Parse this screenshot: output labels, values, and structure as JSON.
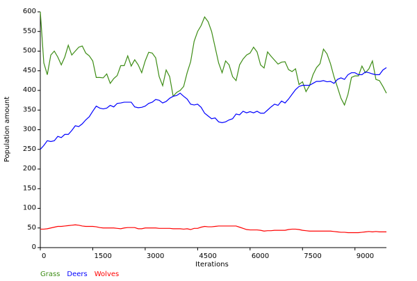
{
  "chart_data": {
    "type": "line",
    "x_label": "Iterations",
    "y_label": "Population amount",
    "x": [
      0,
      100,
      200,
      300,
      400,
      500,
      600,
      700,
      800,
      900,
      1000,
      1100,
      1200,
      1300,
      1400,
      1500,
      1600,
      1700,
      1800,
      1900,
      2000,
      2100,
      2200,
      2300,
      2400,
      2500,
      2600,
      2700,
      2800,
      2900,
      3000,
      3100,
      3200,
      3300,
      3400,
      3500,
      3600,
      3700,
      3800,
      3900,
      4000,
      4100,
      4200,
      4300,
      4400,
      4500,
      4600,
      4700,
      4800,
      4900,
      5000,
      5100,
      5200,
      5300,
      5400,
      5500,
      5600,
      5700,
      5800,
      5900,
      6000,
      6100,
      6200,
      6300,
      6400,
      6500,
      6600,
      6700,
      6800,
      6900,
      7000,
      7100,
      7200,
      7300,
      7400,
      7500,
      7600,
      7700,
      7800,
      7900,
      8000,
      8100,
      8200,
      8300,
      8400,
      8500,
      8600,
      8700,
      8800,
      8900,
      9000,
      9100,
      9200,
      9300,
      9400,
      9500,
      9600,
      9700,
      9800,
      9900
    ],
    "series": [
      {
        "name": "Grass",
        "color": "#3c8c14",
        "values": [
          600,
          470,
          440,
          490,
          500,
          485,
          465,
          485,
          515,
          490,
          500,
          510,
          513,
          495,
          488,
          475,
          433,
          433,
          432,
          442,
          418,
          430,
          438,
          463,
          463,
          488,
          462,
          478,
          465,
          445,
          475,
          497,
          495,
          483,
          435,
          412,
          452,
          435,
          385,
          395,
          400,
          410,
          445,
          473,
          525,
          550,
          565,
          587,
          575,
          550,
          510,
          470,
          445,
          475,
          465,
          435,
          425,
          465,
          480,
          490,
          495,
          510,
          498,
          465,
          457,
          498,
          487,
          477,
          467,
          472,
          473,
          453,
          448,
          455,
          415,
          422,
          397,
          412,
          440,
          458,
          468,
          505,
          493,
          468,
          435,
          408,
          380,
          363,
          390,
          433,
          437,
          437,
          462,
          445,
          455,
          475,
          428,
          425,
          410,
          393
        ]
      },
      {
        "name": "Deers",
        "color": "#0000ff",
        "values": [
          250,
          260,
          272,
          270,
          272,
          283,
          280,
          288,
          288,
          298,
          310,
          308,
          315,
          325,
          333,
          347,
          360,
          355,
          353,
          355,
          362,
          358,
          367,
          368,
          370,
          370,
          370,
          358,
          356,
          357,
          360,
          367,
          370,
          377,
          375,
          368,
          372,
          380,
          385,
          387,
          393,
          385,
          378,
          365,
          363,
          365,
          357,
          342,
          335,
          328,
          330,
          320,
          318,
          320,
          325,
          328,
          340,
          338,
          347,
          343,
          346,
          343,
          347,
          342,
          342,
          350,
          358,
          365,
          362,
          373,
          368,
          378,
          390,
          402,
          410,
          413,
          413,
          413,
          418,
          423,
          423,
          425,
          422,
          423,
          418,
          428,
          432,
          428,
          440,
          445,
          445,
          440,
          440,
          447,
          445,
          442,
          440,
          440,
          452,
          458
        ]
      },
      {
        "name": "Wolves",
        "color": "#ff0000",
        "values": [
          47,
          47,
          48,
          50,
          52,
          54,
          54,
          55,
          56,
          57,
          58,
          57,
          55,
          54,
          54,
          54,
          53,
          51,
          50,
          50,
          50,
          50,
          49,
          48,
          50,
          51,
          51,
          51,
          48,
          48,
          50,
          50,
          50,
          50,
          49,
          49,
          49,
          49,
          48,
          48,
          48,
          47,
          48,
          46,
          49,
          49,
          52,
          54,
          53,
          53,
          54,
          55,
          55,
          55,
          55,
          55,
          55,
          52,
          49,
          46,
          45,
          45,
          45,
          44,
          42,
          43,
          43,
          44,
          44,
          44,
          44,
          46,
          47,
          47,
          46,
          44,
          43,
          42,
          42,
          42,
          42,
          42,
          42,
          42,
          41,
          40,
          39,
          39,
          38,
          38,
          38,
          38,
          39,
          40,
          41,
          40,
          41,
          40,
          40,
          40
        ]
      }
    ],
    "xlim": [
      0,
      9900
    ],
    "ylim": [
      0,
      600
    ],
    "xticks": [
      0,
      1500,
      3000,
      4500,
      6000,
      7500,
      9000
    ],
    "yticks": [
      0,
      50,
      100,
      150,
      200,
      250,
      300,
      350,
      400,
      450,
      500,
      550,
      600
    ],
    "grid": false,
    "legend": "bottom-left"
  }
}
